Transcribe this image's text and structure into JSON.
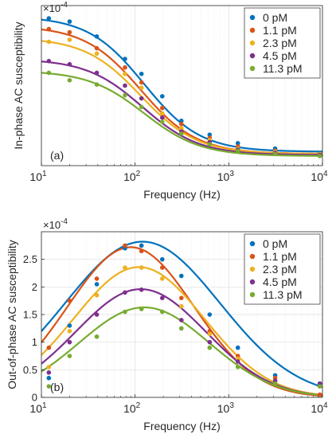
{
  "chart_data": [
    {
      "type": "scatter",
      "panel_label": "(a)",
      "xlabel": "Frequency (Hz)",
      "ylabel": "In-phase AC susceptibility",
      "y_exponent": "×10",
      "y_exponent_power": "-4",
      "xscale": "log",
      "xlim": [
        10,
        10000
      ],
      "ylim": [
        0,
        7.5
      ],
      "yticks": [],
      "xticks": [
        {
          "value": 10,
          "mantissa": "10",
          "power": "1"
        },
        {
          "value": 100,
          "mantissa": "10",
          "power": "2"
        },
        {
          "value": 1000,
          "mantissa": "10",
          "power": "3"
        },
        {
          "value": 10000,
          "mantissa": "10",
          "power": "4"
        }
      ],
      "grid": true,
      "legend_position": "top-right",
      "x": [
        12,
        20,
        39,
        78,
        117,
        195,
        312,
        625,
        1250,
        3125,
        9375
      ],
      "series": [
        {
          "name": "0 pM",
          "color": "#0072BD",
          "values": [
            6.9,
            6.75,
            6.05,
            5.0,
            4.3,
            3.25,
            2.1,
            1.45,
            1.05,
            0.8,
            0.6
          ],
          "fit": {
            "chi0": 7.0,
            "chiInf": 0.65,
            "f0": 125,
            "n": 1.45
          }
        },
        {
          "name": "1.1 pM",
          "color": "#D95319",
          "values": [
            6.4,
            6.25,
            5.5,
            4.6,
            3.9,
            2.7,
            1.95,
            1.3,
            0.9,
            0.7,
            0.5
          ],
          "fit": {
            "chi0": 6.55,
            "chiInf": 0.55,
            "f0": 115,
            "n": 1.45
          }
        },
        {
          "name": "2.3 pM",
          "color": "#EDB120",
          "values": [
            5.8,
            5.9,
            5.25,
            4.3,
            3.65,
            2.45,
            1.75,
            1.2,
            0.8,
            0.65,
            0.55
          ],
          "fit": {
            "chi0": 6.0,
            "chiInf": 0.55,
            "f0": 115,
            "n": 1.45
          }
        },
        {
          "name": "4.5 pM",
          "color": "#7E2F8E",
          "values": [
            4.9,
            4.75,
            4.35,
            3.75,
            3.15,
            2.25,
            1.6,
            1.1,
            0.75,
            0.6,
            0.5
          ],
          "fit": {
            "chi0": 5.0,
            "chiInf": 0.5,
            "f0": 120,
            "n": 1.45
          }
        },
        {
          "name": "11.3 pM",
          "color": "#77AC30",
          "values": [
            4.35,
            4.0,
            3.8,
            3.3,
            2.75,
            2.05,
            1.5,
            1.0,
            0.7,
            0.55,
            0.45
          ],
          "fit": {
            "chi0": 4.45,
            "chiInf": 0.45,
            "f0": 125,
            "n": 1.45
          }
        }
      ]
    },
    {
      "type": "scatter",
      "panel_label": "(b)",
      "xlabel": "Frequency (Hz)",
      "ylabel": "Out-of-phase AC susceptibility",
      "y_exponent": "×10",
      "y_exponent_power": "-4",
      "xscale": "log",
      "xlim": [
        10,
        10000
      ],
      "ylim": [
        0,
        3.0
      ],
      "yticks": [
        {
          "value": 0,
          "label": "0"
        },
        {
          "value": 0.5,
          "label": "0.5"
        },
        {
          "value": 1.0,
          "label": "1"
        },
        {
          "value": 1.5,
          "label": "1.5"
        },
        {
          "value": 2.0,
          "label": "2"
        },
        {
          "value": 2.5,
          "label": "2.5"
        }
      ],
      "xticks": [
        {
          "value": 10,
          "mantissa": "10",
          "power": "1"
        },
        {
          "value": 100,
          "mantissa": "10",
          "power": "2"
        },
        {
          "value": 1000,
          "mantissa": "10",
          "power": "3"
        },
        {
          "value": 10000,
          "mantissa": "10",
          "power": "4"
        }
      ],
      "grid": true,
      "legend_position": "top-right",
      "x": [
        12,
        20,
        39,
        78,
        117,
        195,
        312,
        625,
        1250,
        3125,
        9375
      ],
      "series": [
        {
          "name": "0 pM",
          "color": "#0072BD",
          "values": [
            0.35,
            1.3,
            2.05,
            2.7,
            2.75,
            2.5,
            2.2,
            1.5,
            0.9,
            0.4,
            0.25
          ],
          "fit": {
            "peak": 2.82,
            "f0": 120,
            "alpha": 1.9
          }
        },
        {
          "name": "1.1 pM",
          "color": "#D95319",
          "values": [
            0.9,
            1.75,
            2.15,
            2.75,
            2.65,
            2.35,
            1.8,
            1.2,
            0.75,
            0.35,
            0.05
          ],
          "fit": {
            "peak": 2.72,
            "f0": 90,
            "alpha": 1.55
          }
        },
        {
          "name": "2.3 pM",
          "color": "#EDB120",
          "values": [
            0.55,
            1.2,
            1.85,
            2.35,
            2.35,
            2.15,
            1.65,
            1.15,
            0.7,
            0.3,
            0.2
          ],
          "fit": {
            "peak": 2.36,
            "f0": 110,
            "alpha": 1.6
          }
        },
        {
          "name": "4.5 pM",
          "color": "#7E2F8E",
          "values": [
            0.45,
            1.0,
            1.5,
            1.9,
            1.95,
            1.8,
            1.4,
            1.0,
            0.65,
            0.3,
            0.25
          ],
          "fit": {
            "peak": 1.96,
            "f0": 115,
            "alpha": 1.6
          }
        },
        {
          "name": "11.3 pM",
          "color": "#77AC30",
          "values": [
            0.2,
            0.75,
            1.1,
            1.55,
            1.6,
            1.55,
            1.25,
            0.9,
            0.55,
            0.25,
            0.2
          ],
          "fit": {
            "peak": 1.63,
            "f0": 125,
            "alpha": 1.6
          }
        }
      ]
    }
  ]
}
